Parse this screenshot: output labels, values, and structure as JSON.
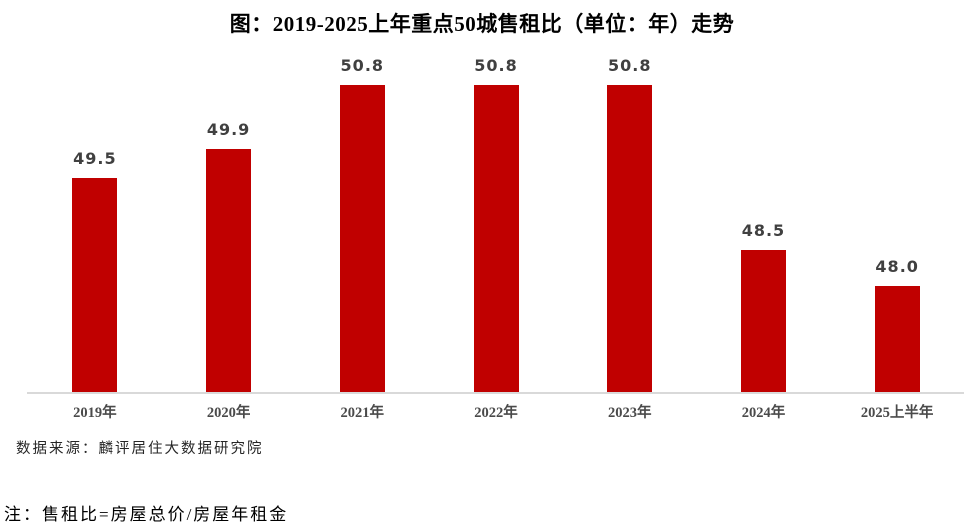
{
  "header": {
    "title": "图：2019-2025上年重点50城售租比（单位：年）走势"
  },
  "chart_data": {
    "type": "bar",
    "title": "图：2019-2025上年重点50城售租比（单位：年）走势",
    "categories": [
      "2019年",
      "2020年",
      "2021年",
      "2022年",
      "2023年",
      "2024年",
      "2025上半年"
    ],
    "values": [
      49.5,
      49.9,
      50.8,
      50.8,
      50.8,
      48.5,
      48.0
    ],
    "value_labels": [
      "49.5",
      "49.9",
      "50.8",
      "50.8",
      "50.8",
      "48.5",
      "48.0"
    ],
    "bar_color": "#c00000",
    "baseline_color": "#d9d9d9",
    "ylim": [
      46.5,
      50.8
    ],
    "xlabel": "",
    "ylabel": "",
    "grid": false,
    "legend": "none"
  },
  "footer": {
    "source": "数据来源：麟评居住大数据研究院",
    "note": "注：售租比=房屋总价/房屋年租金"
  }
}
